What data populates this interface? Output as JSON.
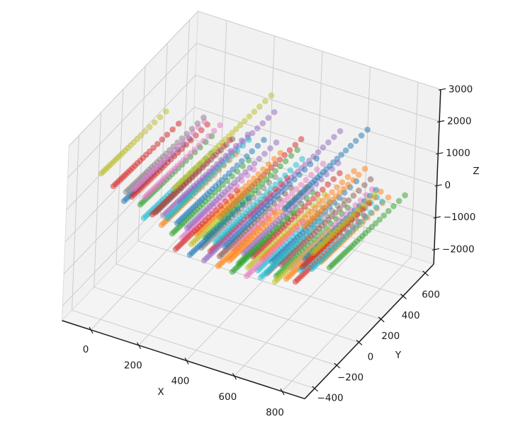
{
  "figure": {
    "background": "#ffffff",
    "pane_wall_color": "#f1f1f1",
    "pane_floor_color": "#f4f4f4",
    "pane_edge_color": "#dcdcdc",
    "grid_color": "#cccccc",
    "spine_color": "#1a1a1a",
    "text_color": "#1a1a1a"
  },
  "chart_data": {
    "type": "scatter",
    "projection": "3d",
    "title": "",
    "xlabel": "X",
    "ylabel": "Y",
    "zlabel": "Z",
    "x_ticks": {
      "values": [
        0,
        200,
        400,
        600,
        800
      ],
      "labels": [
        "0",
        "200",
        "400",
        "600",
        "800"
      ]
    },
    "y_ticks": {
      "values": [
        -400,
        -200,
        0,
        200,
        400,
        600
      ],
      "labels": [
        "−400",
        "−200",
        "0",
        "200",
        "400",
        "600"
      ]
    },
    "z_ticks": {
      "values": [
        -2000,
        -1000,
        0,
        1000,
        2000,
        3000
      ],
      "labels": [
        "−2000",
        "−1000",
        "0",
        "1000",
        "2000",
        "3000"
      ]
    },
    "xlim": [
      -120,
      895
    ],
    "ylim": [
      -490,
      677
    ],
    "zlim": [
      -2460,
      3000
    ],
    "grid": true,
    "legend": false,
    "palette": [
      "#1f77b4",
      "#ff7f0e",
      "#2ca02c",
      "#d62728",
      "#9467bd",
      "#8c564b",
      "#e377c2",
      "#7f7f7f",
      "#bcbd22",
      "#17becf"
    ],
    "marker": {
      "radius": 4.3,
      "alpha": 0.5,
      "dir": [
        0.72,
        -0.69
      ],
      "spacing_px": 5.8
    },
    "series_format": "each series is one straight 3D trajectory of round markers, given as screen-estimated [start_x_px, start_y_px, length_px, palette_color_index]",
    "series": [
      [
        143,
        245,
        127,
        8
      ],
      [
        160,
        263,
        128,
        3
      ],
      [
        178,
        271,
        152,
        7
      ],
      [
        175,
        284,
        128,
        0
      ],
      [
        186,
        278,
        148,
        3
      ],
      [
        198,
        289,
        140,
        2
      ],
      [
        203,
        308,
        133,
        9
      ],
      [
        215,
        303,
        152,
        3
      ],
      [
        189,
        267,
        138,
        6
      ],
      [
        204,
        279,
        148,
        6
      ],
      [
        246,
        266,
        190,
        8
      ],
      [
        254,
        286,
        185,
        4
      ],
      [
        231,
        304,
        165,
        4
      ],
      [
        354,
        306,
        175,
        4
      ],
      [
        310,
        307,
        160,
        3
      ],
      [
        220,
        300,
        150,
        5
      ],
      [
        228,
        318,
        145,
        1
      ],
      [
        236,
        308,
        160,
        9
      ],
      [
        243,
        330,
        150,
        2
      ],
      [
        250,
        315,
        170,
        0
      ],
      [
        257,
        336,
        140,
        6
      ],
      [
        264,
        322,
        175,
        4
      ],
      [
        270,
        345,
        150,
        8
      ],
      [
        277,
        330,
        165,
        1
      ],
      [
        284,
        350,
        145,
        7
      ],
      [
        290,
        336,
        180,
        2
      ],
      [
        297,
        355,
        150,
        3
      ],
      [
        304,
        342,
        170,
        9
      ],
      [
        310,
        362,
        140,
        5
      ],
      [
        317,
        348,
        180,
        0
      ],
      [
        324,
        368,
        150,
        1
      ],
      [
        330,
        352,
        175,
        6
      ],
      [
        337,
        372,
        145,
        2
      ],
      [
        344,
        358,
        185,
        4
      ],
      [
        350,
        378,
        150,
        8
      ],
      [
        357,
        362,
        170,
        3
      ],
      [
        364,
        382,
        140,
        9
      ],
      [
        370,
        366,
        180,
        1
      ],
      [
        377,
        386,
        150,
        7
      ],
      [
        384,
        370,
        165,
        0
      ],
      [
        390,
        390,
        140,
        2
      ],
      [
        397,
        374,
        175,
        5
      ],
      [
        404,
        394,
        145,
        1
      ],
      [
        410,
        378,
        160,
        6
      ],
      [
        417,
        398,
        135,
        3
      ],
      [
        424,
        382,
        150,
        9
      ],
      [
        402,
        295,
        162,
        0
      ],
      [
        430,
        320,
        118,
        1
      ],
      [
        453,
        370,
        132,
        1
      ],
      [
        465,
        378,
        148,
        2
      ],
      [
        440,
        380,
        138,
        9
      ],
      [
        430,
        365,
        140,
        0
      ],
      [
        438,
        366,
        138,
        1
      ],
      [
        427,
        377,
        130,
        3
      ],
      [
        442,
        357,
        120,
        8
      ],
      [
        248,
        352,
        120,
        3
      ],
      [
        268,
        360,
        115,
        0
      ],
      [
        288,
        368,
        125,
        4
      ],
      [
        308,
        376,
        110,
        1
      ],
      [
        328,
        384,
        120,
        2
      ],
      [
        348,
        390,
        110,
        6
      ],
      [
        368,
        392,
        115,
        9
      ],
      [
        388,
        398,
        105,
        8
      ]
    ]
  }
}
